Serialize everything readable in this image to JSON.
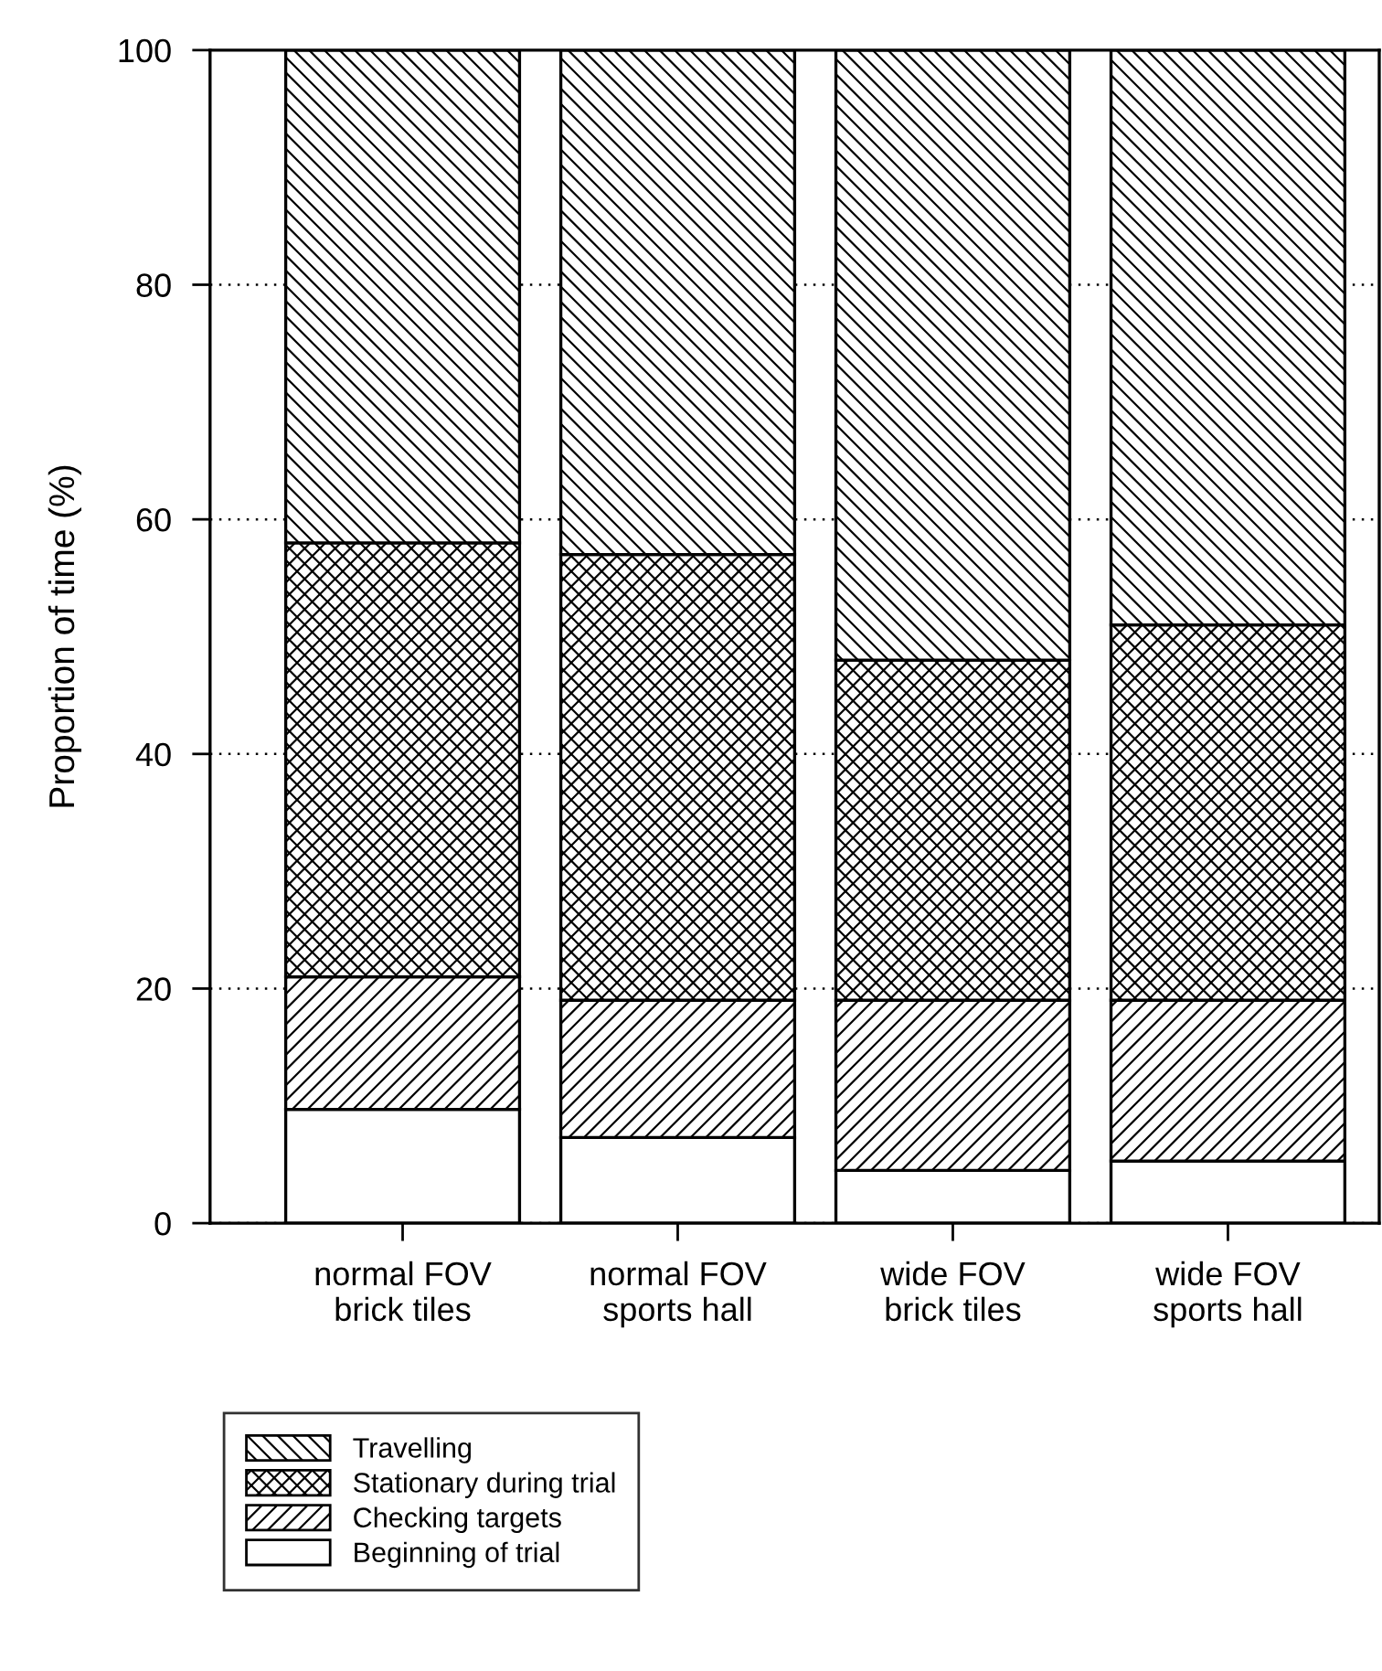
{
  "chart_data": {
    "type": "bar",
    "ylabel": "Proportion of time (%)",
    "stacked": true,
    "categories": [
      "normal FOV\nbrick tiles",
      "normal FOV\nsports hall",
      "wide FOV\nbrick tiles",
      "wide FOV\nsports hall"
    ],
    "series": [
      {
        "name": "Beginning of trial",
        "color": "#ffffff",
        "values": [
          9.7,
          7.3,
          4.5,
          5.3
        ]
      },
      {
        "name": "Checking targets",
        "color": "#000000",
        "values": [
          11.3,
          11.7,
          14.5,
          13.7
        ]
      },
      {
        "name": "Stationary during trial",
        "color": "#000000",
        "values": [
          37,
          38,
          29,
          32
        ]
      },
      {
        "name": "Travelling",
        "color": "#000000",
        "values": [
          42,
          43,
          52,
          49
        ]
      }
    ],
    "ylim": [
      0,
      100
    ],
    "yticks": [
      0,
      20,
      40,
      60,
      80,
      100
    ],
    "grid": "y",
    "legend": "bottom left"
  }
}
